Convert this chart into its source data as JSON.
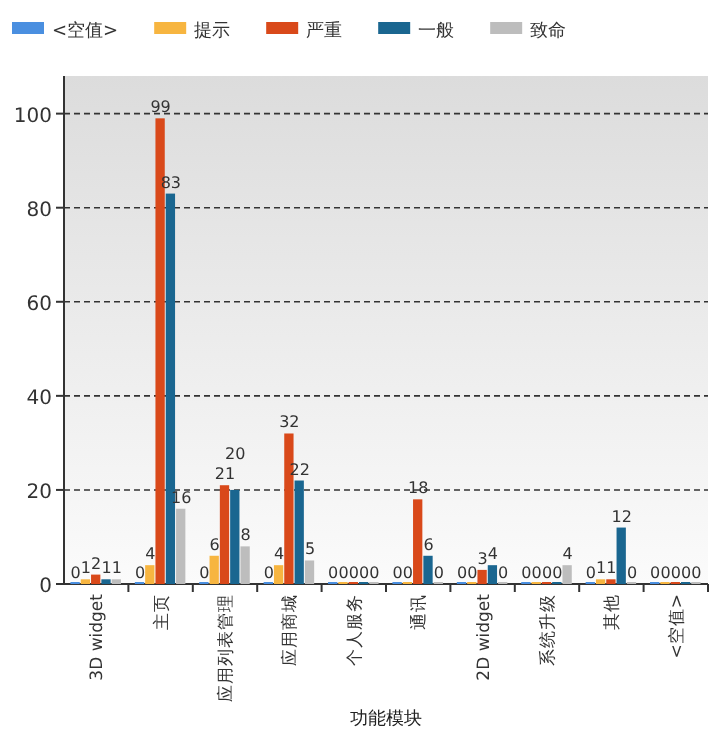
{
  "chart_data": {
    "type": "bar",
    "xlabel": "功能模块",
    "categories": [
      "3D widget",
      "主页",
      "应用列表管理",
      "应用商城",
      "个人服务",
      "通讯",
      "2D widget",
      "系统升级",
      "其他",
      "<空值>"
    ],
    "series": [
      {
        "name": "<空值>",
        "color": "#4a8fe0",
        "values": [
          0,
          0,
          0,
          0,
          0,
          0,
          0,
          0,
          0,
          0
        ]
      },
      {
        "name": "提示",
        "color": "#f7b540",
        "values": [
          1,
          4,
          6,
          4,
          0,
          0,
          0,
          0,
          1,
          0
        ]
      },
      {
        "name": "严重",
        "color": "#d9491a",
        "values": [
          2,
          99,
          21,
          32,
          0,
          18,
          3,
          0,
          1,
          0
        ]
      },
      {
        "name": "一般",
        "color": "#1a6690",
        "values": [
          1,
          83,
          20,
          22,
          0,
          6,
          4,
          0,
          12,
          0
        ]
      },
      {
        "name": "致命",
        "color": "#bdbdbd",
        "values": [
          1,
          16,
          8,
          5,
          0,
          0,
          0,
          4,
          0,
          0
        ]
      }
    ],
    "ylim": [
      0,
      108
    ],
    "yticks": [
      0,
      20,
      40,
      60,
      80,
      100
    ],
    "grid": "y",
    "legend": "top left",
    "data_labels": true
  }
}
